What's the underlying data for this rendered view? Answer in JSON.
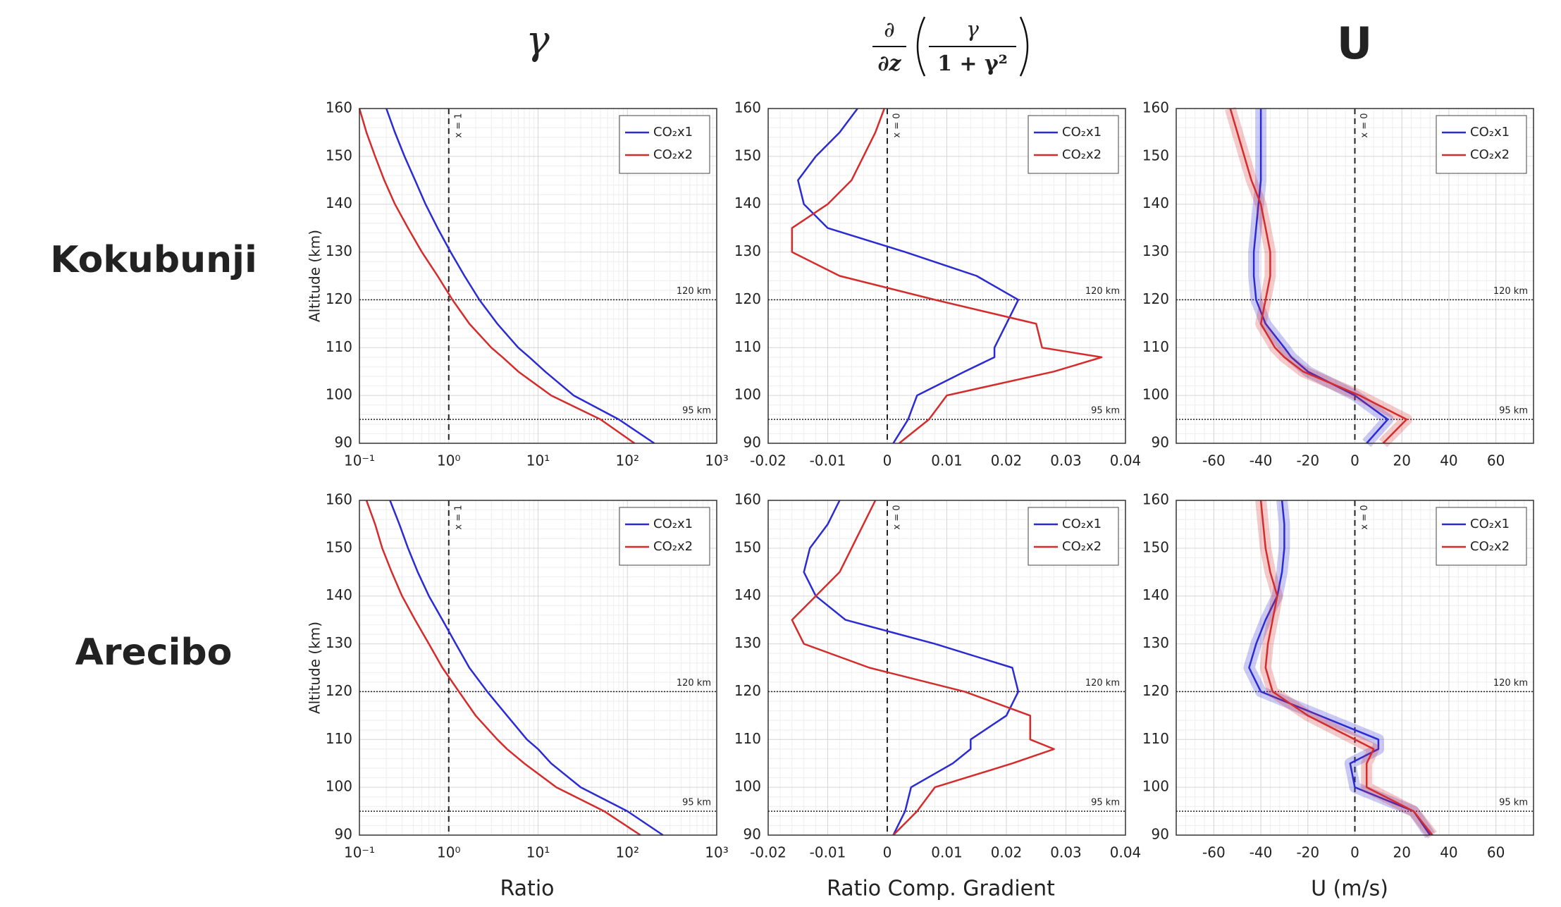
{
  "figure": {
    "column_titles": [
      "γ",
      {
        "operator_top": "∂",
        "operator_bottom": "∂z",
        "numerator": "γ",
        "denominator": "1 + γ²"
      },
      "U"
    ],
    "row_labels": [
      "Kokubunji",
      "Arecibo"
    ],
    "x_labels": [
      "Ratio",
      "Ratio Comp. Gradient",
      "U (m/s)"
    ]
  },
  "chart_data": [
    {
      "type": "line",
      "xscale": "log",
      "ylabel": "Altitude (km)",
      "y": [
        90,
        95,
        100,
        105,
        108,
        110,
        115,
        120,
        125,
        130,
        135,
        140,
        145,
        150,
        155,
        160
      ],
      "series": [
        {
          "name": "CO₂x1",
          "color": "#2b2bd6",
          "values": [
            200,
            80,
            25,
            12,
            8,
            6,
            3.5,
            2.2,
            1.5,
            1.05,
            0.75,
            0.55,
            0.42,
            0.32,
            0.25,
            0.2
          ]
        },
        {
          "name": "CO₂x2",
          "color": "#d62b2b",
          "values": [
            120,
            50,
            14,
            6,
            4,
            3,
            1.7,
            1.1,
            0.75,
            0.5,
            0.35,
            0.25,
            0.19,
            0.15,
            0.12,
            0.1
          ]
        }
      ],
      "xlim": [
        0.1,
        1000
      ],
      "xticks": [
        {
          "value": 0.1,
          "label": "10⁻¹"
        },
        {
          "value": 1,
          "label": "10⁰"
        },
        {
          "value": 10,
          "label": "10¹"
        },
        {
          "value": 100,
          "label": "10²"
        },
        {
          "value": 1000,
          "label": "10³"
        }
      ],
      "ylim": [
        90,
        160
      ],
      "yticks": [
        90,
        100,
        110,
        120,
        130,
        140,
        150,
        160
      ],
      "grid": true,
      "legend": "upper right",
      "hlines": [
        {
          "value": 120,
          "label": "120 km"
        },
        {
          "value": 95,
          "label": "95 km"
        }
      ],
      "vline": {
        "value": 1,
        "label": "x = 1"
      }
    },
    {
      "type": "line",
      "y": [
        90,
        95,
        100,
        105,
        108,
        110,
        115,
        120,
        125,
        130,
        135,
        140,
        145,
        150,
        155,
        160
      ],
      "series": [
        {
          "name": "CO₂x1",
          "color": "#2b2bd6",
          "values": [
            0.001,
            0.0035,
            0.005,
            0.013,
            0.018,
            0.018,
            0.02,
            0.022,
            0.015,
            0.003,
            -0.01,
            -0.014,
            -0.015,
            -0.012,
            -0.008,
            -0.005
          ]
        },
        {
          "name": "CO₂x2",
          "color": "#d62b2b",
          "values": [
            0.002,
            0.007,
            0.01,
            0.028,
            0.036,
            0.026,
            0.025,
            0.008,
            -0.008,
            -0.016,
            -0.016,
            -0.01,
            -0.006,
            -0.004,
            -0.002,
            -0.0005
          ]
        }
      ],
      "xlim": [
        -0.02,
        0.04
      ],
      "xticks": [
        -0.02,
        -0.01,
        0,
        0.01,
        0.02,
        0.03,
        0.04
      ],
      "ylim": [
        90,
        160
      ],
      "yticks": [
        90,
        100,
        110,
        120,
        130,
        140,
        150,
        160
      ],
      "grid": true,
      "legend": "upper right",
      "hlines": [
        {
          "value": 120,
          "label": "120 km"
        },
        {
          "value": 95,
          "label": "95 km"
        }
      ],
      "vline": {
        "value": 0,
        "label": "x = 0"
      }
    },
    {
      "type": "line",
      "band": true,
      "y": [
        90,
        95,
        100,
        105,
        108,
        110,
        115,
        120,
        125,
        130,
        135,
        140,
        145,
        150,
        155,
        160
      ],
      "series": [
        {
          "name": "CO₂x1",
          "color": "#2b2bd6",
          "values": [
            5,
            14,
            0,
            -20,
            -27,
            -30,
            -38,
            -42,
            -43,
            -43,
            -42,
            -41,
            -40,
            -40,
            -40,
            -40
          ]
        },
        {
          "name": "CO₂x2",
          "color": "#d62b2b",
          "values": [
            12,
            22,
            2,
            -22,
            -30,
            -34,
            -40,
            -38,
            -36,
            -36,
            -38,
            -40,
            -44,
            -47,
            -50,
            -53
          ]
        }
      ],
      "xlim": [
        -76,
        76
      ],
      "xticks": [
        -60,
        -40,
        -20,
        0,
        20,
        40,
        60
      ],
      "ylim": [
        90,
        160
      ],
      "yticks": [
        90,
        100,
        110,
        120,
        130,
        140,
        150,
        160
      ],
      "grid": true,
      "legend": "upper right",
      "hlines": [
        {
          "value": 120,
          "label": "120 km"
        },
        {
          "value": 95,
          "label": "95 km"
        }
      ],
      "vline": {
        "value": 0,
        "label": "x = 0"
      }
    },
    {
      "type": "line",
      "xscale": "log",
      "ylabel": "Altitude (km)",
      "y": [
        90,
        95,
        100,
        105,
        108,
        110,
        115,
        120,
        125,
        130,
        135,
        140,
        145,
        150,
        155,
        160
      ],
      "series": [
        {
          "name": "CO₂x1",
          "color": "#2b2bd6",
          "values": [
            250,
            100,
            30,
            14,
            10,
            7.5,
            4.5,
            2.7,
            1.7,
            1.2,
            0.85,
            0.6,
            0.45,
            0.35,
            0.28,
            0.22
          ]
        },
        {
          "name": "CO₂x2",
          "color": "#d62b2b",
          "values": [
            140,
            55,
            16,
            7,
            4.5,
            3.5,
            2,
            1.3,
            0.85,
            0.6,
            0.42,
            0.3,
            0.23,
            0.18,
            0.15,
            0.12
          ]
        }
      ],
      "xlim": [
        0.1,
        1000
      ],
      "xticks": [
        {
          "value": 0.1,
          "label": "10⁻¹"
        },
        {
          "value": 1,
          "label": "10⁰"
        },
        {
          "value": 10,
          "label": "10¹"
        },
        {
          "value": 100,
          "label": "10²"
        },
        {
          "value": 1000,
          "label": "10³"
        }
      ],
      "ylim": [
        90,
        160
      ],
      "yticks": [
        90,
        100,
        110,
        120,
        130,
        140,
        150,
        160
      ],
      "grid": true,
      "legend": "upper right",
      "hlines": [
        {
          "value": 120,
          "label": "120 km"
        },
        {
          "value": 95,
          "label": "95 km"
        }
      ],
      "vline": {
        "value": 1,
        "label": "x = 1"
      }
    },
    {
      "type": "line",
      "y": [
        90,
        95,
        100,
        105,
        108,
        110,
        115,
        120,
        125,
        130,
        135,
        140,
        145,
        150,
        155,
        160
      ],
      "series": [
        {
          "name": "CO₂x1",
          "color": "#2b2bd6",
          "values": [
            0.001,
            0.003,
            0.004,
            0.011,
            0.014,
            0.014,
            0.02,
            0.022,
            0.021,
            0.008,
            -0.007,
            -0.012,
            -0.014,
            -0.013,
            -0.01,
            -0.008
          ]
        },
        {
          "name": "CO₂x2",
          "color": "#d62b2b",
          "values": [
            0.001,
            0.005,
            0.008,
            0.021,
            0.028,
            0.024,
            0.024,
            0.013,
            -0.003,
            -0.014,
            -0.016,
            -0.012,
            -0.008,
            -0.006,
            -0.004,
            -0.002
          ]
        }
      ],
      "xlim": [
        -0.02,
        0.04
      ],
      "xticks": [
        -0.02,
        -0.01,
        0,
        0.01,
        0.02,
        0.03,
        0.04
      ],
      "ylim": [
        90,
        160
      ],
      "yticks": [
        90,
        100,
        110,
        120,
        130,
        140,
        150,
        160
      ],
      "grid": true,
      "legend": "upper right",
      "hlines": [
        {
          "value": 120,
          "label": "120 km"
        },
        {
          "value": 95,
          "label": "95 km"
        }
      ],
      "vline": {
        "value": 0,
        "label": "x = 0"
      }
    },
    {
      "type": "line",
      "band": true,
      "y": [
        90,
        95,
        100,
        105,
        108,
        110,
        115,
        120,
        125,
        130,
        135,
        140,
        145,
        150,
        155,
        160
      ],
      "series": [
        {
          "name": "CO₂x1",
          "color": "#2b2bd6",
          "values": [
            32,
            25,
            0,
            -2,
            10,
            10,
            -15,
            -40,
            -45,
            -42,
            -38,
            -33,
            -31,
            -30,
            -30,
            -31
          ]
        },
        {
          "name": "CO₂x2",
          "color": "#d62b2b",
          "values": [
            33,
            25,
            5,
            5,
            8,
            0,
            -20,
            -35,
            -38,
            -37,
            -35,
            -33,
            -36,
            -38,
            -39,
            -40
          ]
        }
      ],
      "xlim": [
        -76,
        76
      ],
      "xticks": [
        -60,
        -40,
        -20,
        0,
        20,
        40,
        60
      ],
      "ylim": [
        90,
        160
      ],
      "yticks": [
        90,
        100,
        110,
        120,
        130,
        140,
        150,
        160
      ],
      "grid": true,
      "legend": "upper right",
      "hlines": [
        {
          "value": 120,
          "label": "120 km"
        },
        {
          "value": 95,
          "label": "95 km"
        }
      ],
      "vline": {
        "value": 0,
        "label": "x = 0"
      }
    }
  ]
}
